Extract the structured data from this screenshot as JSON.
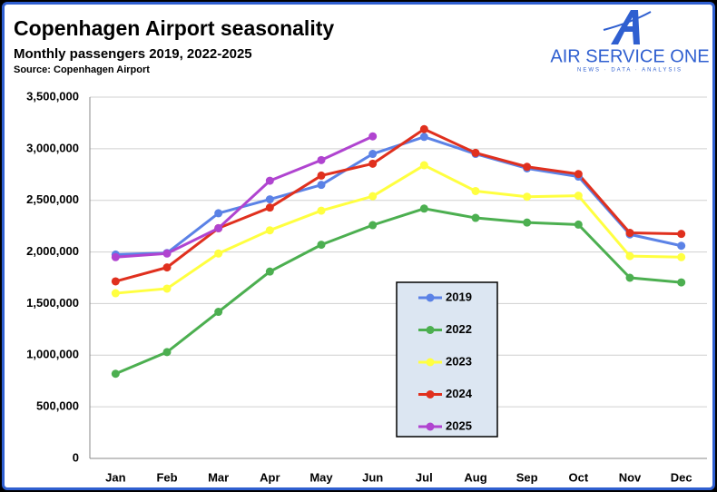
{
  "chart_data": {
    "type": "line",
    "title": "Copenhagen Airport seasonality",
    "subtitle": "Monthly passengers 2019, 2022-2025",
    "source": "Source: Copenhagen Airport",
    "logo_text": "AIR SERVICE ONE",
    "logo_tagline": "NEWS · DATA · ANALYSIS",
    "categories": [
      "Jan",
      "Feb",
      "Mar",
      "Apr",
      "May",
      "Jun",
      "Jul",
      "Aug",
      "Sep",
      "Oct",
      "Nov",
      "Dec"
    ],
    "series": [
      {
        "name": "2019",
        "color": "#5b82e6",
        "values": [
          1975000,
          1990000,
          2375000,
          2510000,
          2650000,
          2950000,
          3115000,
          2950000,
          2810000,
          2730000,
          2170000,
          2060000
        ]
      },
      {
        "name": "2022",
        "color": "#4caf50",
        "values": [
          820000,
          1030000,
          1420000,
          1810000,
          2070000,
          2260000,
          2420000,
          2330000,
          2285000,
          2265000,
          1750000,
          1705000
        ]
      },
      {
        "name": "2023",
        "color": "#ffff40",
        "values": [
          1600000,
          1645000,
          1985000,
          2210000,
          2400000,
          2540000,
          2840000,
          2590000,
          2535000,
          2545000,
          1960000,
          1950000
        ]
      },
      {
        "name": "2024",
        "color": "#e0301e",
        "values": [
          1715000,
          1850000,
          2230000,
          2430000,
          2740000,
          2855000,
          3190000,
          2960000,
          2825000,
          2755000,
          2185000,
          2175000
        ]
      },
      {
        "name": "2025",
        "color": "#b044d0",
        "values": [
          1950000,
          1985000,
          2230000,
          2690000,
          2890000,
          3120000,
          null,
          null,
          null,
          null,
          null,
          null
        ]
      }
    ],
    "ylim": [
      0,
      3500000
    ],
    "yticks": [
      0,
      {
        "value": 500000,
        "label": "500,000"
      },
      {
        "value": 1000000,
        "label": "1,000,000"
      },
      {
        "value": 1500000,
        "label": "1,500,000"
      },
      {
        "value": 2000000,
        "label": "2,000,000"
      },
      {
        "value": 2500000,
        "label": "2,500,000"
      },
      {
        "value": 3000000,
        "label": "3,000,000"
      },
      {
        "value": 3500000,
        "label": "3,500,000"
      }
    ],
    "grid": true
  }
}
